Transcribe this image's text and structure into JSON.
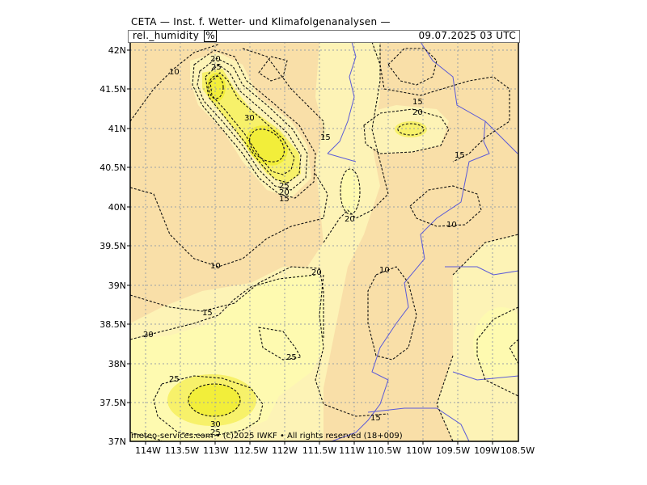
{
  "header": {
    "title": "CETA — Inst. f. Wetter- und Klimafolgenanalysen —",
    "variable": "rel._humidity",
    "unit": "%",
    "valid_time": "09.07.2025 03 UTC"
  },
  "axes": {
    "lat_labels": [
      "42N",
      "41.5N",
      "41N",
      "40.5N",
      "40N",
      "39.5N",
      "39N",
      "38.5N",
      "38N",
      "37.5N",
      "37N"
    ],
    "lon_labels": [
      "114W",
      "113.5W",
      "113W",
      "112.5W",
      "112W",
      "111.5W",
      "111W",
      "110.5W",
      "110W",
      "109.5W",
      "109W",
      "108.5W"
    ]
  },
  "contour_labels": {
    "l10a": "10",
    "l20a": "20",
    "l25a": "25",
    "l30a": "30",
    "l25b": "25",
    "l20b": "20",
    "l15a": "15",
    "l15b": "15",
    "l20c": "20",
    "l10b": "10",
    "l20d": "20",
    "l10c": "10",
    "l15c": "15",
    "l20e": "20",
    "l25c": "25",
    "l25d": "25",
    "l30b": "30",
    "l25e": "25",
    "l15d": "15",
    "l15e": "15",
    "l20f": "20",
    "l10d": "10",
    "l15f": "15"
  },
  "colors": {
    "dry": "#f9dfa8",
    "mid": "#fdf3b6",
    "moist": "#fefab0",
    "wet": "#f7f16a",
    "wettest": "#f2ee3a",
    "border": "#5a5ad8"
  },
  "footer": {
    "credit": "meteo-services.com • (c)2025 IWKF • All rights reserved (18+009)"
  }
}
